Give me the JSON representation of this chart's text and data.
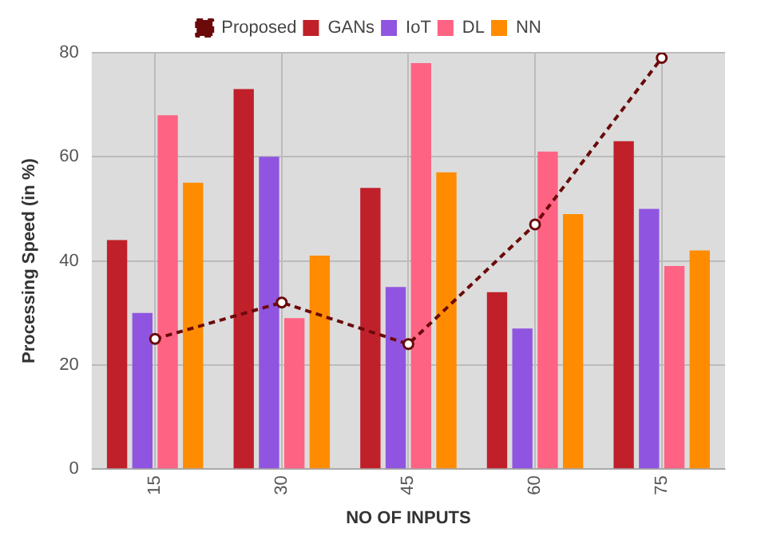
{
  "chart_data": {
    "type": "bar",
    "xlabel": "NO OF INPUTS",
    "ylabel": "Processing Speed (in %)",
    "categories": [
      "15",
      "30",
      "45",
      "60",
      "75"
    ],
    "series": [
      {
        "name": "Proposed",
        "type": "line",
        "color": "#6b0a0a",
        "marker": "circle",
        "line_style": "dashed",
        "values": [
          25,
          32,
          24,
          47,
          79
        ]
      },
      {
        "name": "GANs",
        "color": "#c0202a",
        "values": [
          44,
          73,
          54,
          34,
          63
        ]
      },
      {
        "name": "IoT",
        "color": "#9055e0",
        "values": [
          30,
          60,
          35,
          27,
          50
        ]
      },
      {
        "name": "DL",
        "color": "#ff6384",
        "values": [
          68,
          29,
          78,
          61,
          39
        ]
      },
      {
        "name": "NN",
        "color": "#ff8c00",
        "values": [
          55,
          41,
          57,
          49,
          42
        ]
      }
    ],
    "ylim": [
      0,
      80
    ],
    "yticks": [
      0,
      20,
      40,
      60,
      80
    ],
    "grid": true,
    "legend": "top"
  }
}
